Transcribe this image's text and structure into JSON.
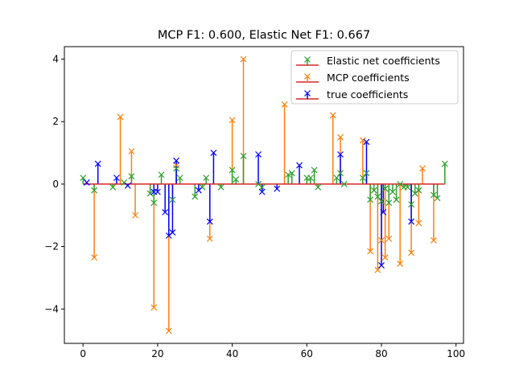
{
  "chart_data": {
    "type": "stem",
    "title": "MCP F1: 0.600, Elastic Net F1: 0.667",
    "xlabel": "",
    "ylabel": "",
    "xlim": [
      -5,
      102
    ],
    "ylim": [
      -5.1,
      4.4
    ],
    "xticks": [
      0,
      20,
      40,
      60,
      80,
      100
    ],
    "yticks": [
      -4,
      -2,
      0,
      2,
      4
    ],
    "baseline": {
      "x0": 0,
      "x1": 97,
      "y": 0,
      "color": "#d62728"
    },
    "legend": {
      "position": "top-right"
    },
    "series": [
      {
        "name": "Elastic net coefficients",
        "color": "#2ca02c",
        "marker": "x",
        "points": [
          [
            0,
            0.2
          ],
          [
            3,
            -0.2
          ],
          [
            8,
            -0.1
          ],
          [
            11,
            0.05
          ],
          [
            13,
            0.25
          ],
          [
            18,
            -0.3
          ],
          [
            19,
            -0.6
          ],
          [
            21,
            0.3
          ],
          [
            24,
            -0.5
          ],
          [
            25,
            0.5
          ],
          [
            26,
            0.2
          ],
          [
            30,
            -0.4
          ],
          [
            32,
            -0.1
          ],
          [
            33,
            0.2
          ],
          [
            37,
            -0.1
          ],
          [
            40,
            0.45
          ],
          [
            41,
            0.15
          ],
          [
            43,
            0.9
          ],
          [
            47,
            0.0
          ],
          [
            48,
            -0.1
          ],
          [
            55,
            0.3
          ],
          [
            56,
            0.35
          ],
          [
            60,
            0.2
          ],
          [
            61,
            0.2
          ],
          [
            62,
            0.45
          ],
          [
            63,
            -0.1
          ],
          [
            68,
            0.2
          ],
          [
            69,
            0.35
          ],
          [
            70,
            0.0
          ],
          [
            75,
            0.2
          ],
          [
            76,
            0.35
          ],
          [
            77,
            -0.5
          ],
          [
            78,
            -0.2
          ],
          [
            79,
            -0.4
          ],
          [
            80,
            -0.55
          ],
          [
            81,
            -0.15
          ],
          [
            82,
            -0.6
          ],
          [
            83,
            -0.25
          ],
          [
            84,
            -0.5
          ],
          [
            85,
            0.0
          ],
          [
            86,
            -0.1
          ],
          [
            87,
            -0.1
          ],
          [
            88,
            -0.65
          ],
          [
            89,
            -0.3
          ],
          [
            90,
            -0.2
          ],
          [
            94,
            -0.35
          ],
          [
            95,
            -0.45
          ],
          [
            97,
            0.65
          ]
        ]
      },
      {
        "name": "MCP coefficients",
        "color": "#ff7f0e",
        "marker": "x",
        "points": [
          [
            3,
            -2.35
          ],
          [
            10,
            2.15
          ],
          [
            13,
            1.05
          ],
          [
            14,
            -1.0
          ],
          [
            19,
            -3.95
          ],
          [
            23,
            -4.7
          ],
          [
            25,
            0.6
          ],
          [
            34,
            -1.75
          ],
          [
            40,
            2.05
          ],
          [
            43,
            4.0
          ],
          [
            54,
            2.55
          ],
          [
            67,
            2.2
          ],
          [
            69,
            1.5
          ],
          [
            75,
            1.4
          ],
          [
            77,
            -2.15
          ],
          [
            79,
            -2.75
          ],
          [
            80,
            -1.8
          ],
          [
            81,
            -2.35
          ],
          [
            82,
            -1.75
          ],
          [
            85,
            -2.55
          ],
          [
            88,
            -2.2
          ],
          [
            90,
            -1.25
          ],
          [
            91,
            0.5
          ],
          [
            94,
            -1.8
          ]
        ]
      },
      {
        "name": "true coefficients",
        "color": "#0000ff",
        "marker": "x",
        "points": [
          [
            1,
            0.05
          ],
          [
            4,
            0.65
          ],
          [
            9,
            0.2
          ],
          [
            12,
            -0.05
          ],
          [
            19,
            -0.25
          ],
          [
            20,
            -0.25
          ],
          [
            22,
            -0.9
          ],
          [
            23,
            -1.65
          ],
          [
            24,
            -1.55
          ],
          [
            25,
            0.75
          ],
          [
            31,
            -0.2
          ],
          [
            34,
            -1.2
          ],
          [
            35,
            1.0
          ],
          [
            47,
            0.95
          ],
          [
            48,
            -0.25
          ],
          [
            52,
            -0.15
          ],
          [
            58,
            0.6
          ],
          [
            69,
            0.95
          ],
          [
            76,
            1.35
          ],
          [
            80,
            -2.6
          ],
          [
            80.5,
            -0.9
          ],
          [
            88,
            -1.2
          ]
        ]
      }
    ]
  }
}
